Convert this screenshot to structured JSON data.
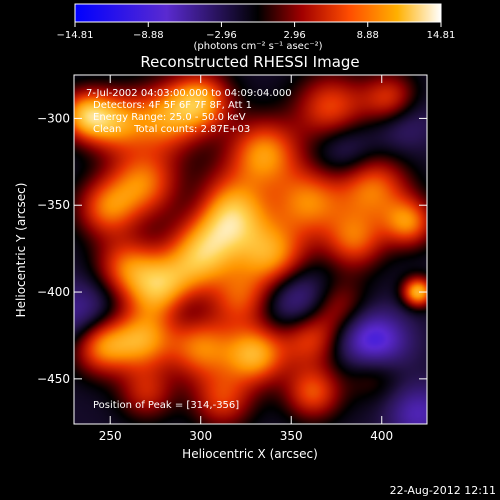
{
  "chart_data": {
    "type": "heatmap",
    "title": "Reconstructed RHESSI Image",
    "xlabel": "Heliocentric X (arcsec)",
    "ylabel": "Heliocentric Y (arcsec)",
    "xlim": [
      230,
      425
    ],
    "ylim": [
      -476,
      -275
    ],
    "x_ticks": [
      250,
      300,
      350,
      400
    ],
    "y_ticks": [
      -300,
      -350,
      -400,
      -450
    ],
    "x_tick_labels": [
      "250",
      "300",
      "350",
      "400"
    ],
    "y_tick_labels": [
      "−300",
      "−350",
      "−400",
      "−450"
    ],
    "colorbar": {
      "range": [
        -14.81,
        14.81
      ],
      "ticks": [
        -14.81,
        -8.88,
        -2.96,
        2.96,
        8.88,
        14.81
      ],
      "tick_labels": [
        "−14.81",
        "−8.88",
        "−2.96",
        "2.96",
        "8.88",
        "14.81"
      ],
      "units": "(photons cm⁻² s⁻¹ asec⁻²)",
      "colors": [
        "#0000ff",
        "#5a2ad0",
        "#000000",
        "#a10000",
        "#ff4d00",
        "#ffb000",
        "#ffffff"
      ]
    },
    "annotations": [
      "7-Jul-2002 04:03:00.000 to 04:09:04.000",
      "Detectors: 4F 5F 6F 7F 8F, Att 1",
      "Energy Range: 25.0 - 50.0 keV",
      "Clean    Total counts: 2.87E+03",
      "Position of Peak = [314,-356]"
    ],
    "peak": [
      314,
      -356
    ],
    "sources": [
      {
        "x": 314,
        "y": -356,
        "v": 14.5,
        "r": 16
      },
      {
        "x": 280,
        "y": -300,
        "v": 9,
        "r": 14
      },
      {
        "x": 236,
        "y": -298,
        "v": 10,
        "r": 10
      },
      {
        "x": 300,
        "y": -290,
        "v": 10,
        "r": 12
      },
      {
        "x": 252,
        "y": -302,
        "v": 9,
        "r": 12
      },
      {
        "x": 372,
        "y": -294,
        "v": 8,
        "r": 14
      },
      {
        "x": 405,
        "y": -290,
        "v": 9,
        "r": 11
      },
      {
        "x": 268,
        "y": -337,
        "v": 9,
        "r": 14
      },
      {
        "x": 248,
        "y": -352,
        "v": 8,
        "r": 12
      },
      {
        "x": 335,
        "y": -320,
        "v": 10,
        "r": 14
      },
      {
        "x": 360,
        "y": -348,
        "v": 9,
        "r": 14
      },
      {
        "x": 395,
        "y": -340,
        "v": 9,
        "r": 14
      },
      {
        "x": 415,
        "y": -360,
        "v": 9,
        "r": 10
      },
      {
        "x": 385,
        "y": -370,
        "v": 8,
        "r": 12
      },
      {
        "x": 340,
        "y": -380,
        "v": 10,
        "r": 14
      },
      {
        "x": 300,
        "y": -380,
        "v": 9,
        "r": 13
      },
      {
        "x": 258,
        "y": -385,
        "v": 7,
        "r": 12
      },
      {
        "x": 278,
        "y": -398,
        "v": 12,
        "r": 14
      },
      {
        "x": 322,
        "y": -404,
        "v": 7,
        "r": 12
      },
      {
        "x": 375,
        "y": -408,
        "v": 6,
        "r": 12
      },
      {
        "x": 245,
        "y": -430,
        "v": 11,
        "r": 12
      },
      {
        "x": 268,
        "y": -428,
        "v": 9,
        "r": 12
      },
      {
        "x": 300,
        "y": -432,
        "v": 9,
        "r": 13
      },
      {
        "x": 330,
        "y": -436,
        "v": 11,
        "r": 12
      },
      {
        "x": 360,
        "y": -426,
        "v": 8,
        "r": 12
      },
      {
        "x": 395,
        "y": -442,
        "v": 9,
        "r": 12
      },
      {
        "x": 362,
        "y": -458,
        "v": 8,
        "r": 11
      },
      {
        "x": 312,
        "y": -462,
        "v": 7,
        "r": 12
      },
      {
        "x": 270,
        "y": -458,
        "v": 6,
        "r": 11
      },
      {
        "x": 420,
        "y": -400,
        "v": 12,
        "r": 6
      },
      {
        "x": 395,
        "y": -432,
        "v": -14,
        "r": 13
      },
      {
        "x": 355,
        "y": -405,
        "v": -7,
        "r": 14
      },
      {
        "x": 410,
        "y": -300,
        "v": -5,
        "r": 12
      },
      {
        "x": 235,
        "y": -415,
        "v": -6,
        "r": 14
      },
      {
        "x": 420,
        "y": -470,
        "v": -6,
        "r": 12
      },
      {
        "x": 300,
        "y": -350,
        "v": -4,
        "r": 12
      },
      {
        "x": 290,
        "y": -410,
        "v": -3,
        "r": 10
      },
      {
        "x": 380,
        "y": -318,
        "v": -4,
        "r": 12
      }
    ]
  },
  "footer": {
    "timestamp": "22-Aug-2012 12:11"
  }
}
